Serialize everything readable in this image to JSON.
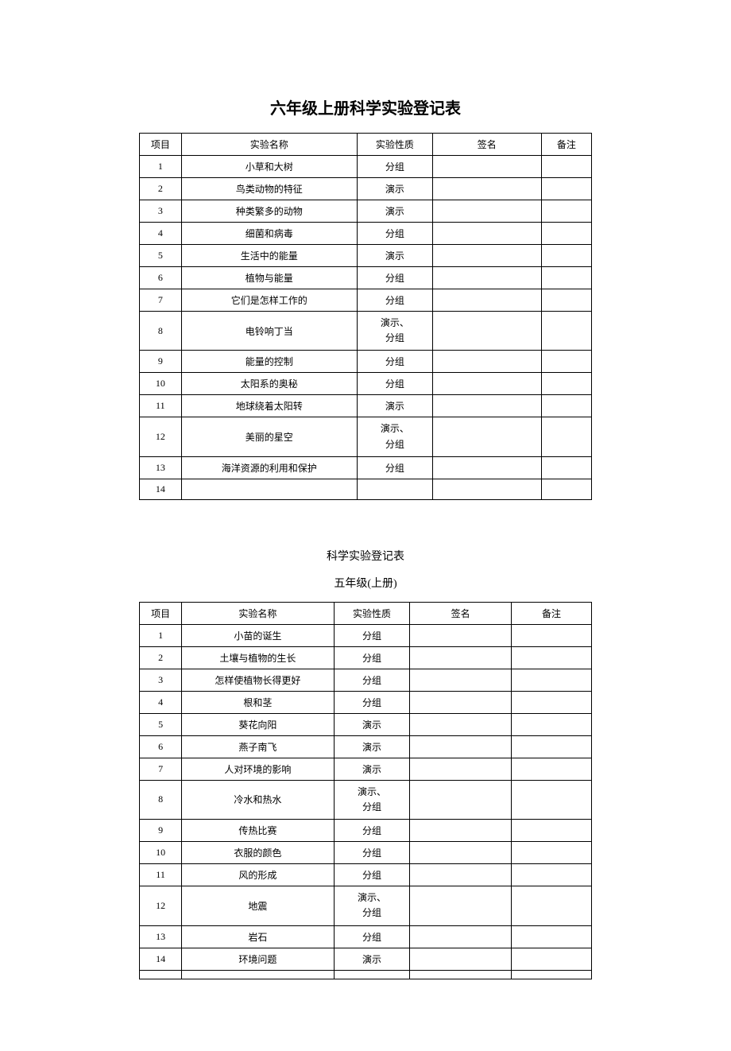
{
  "title1": "六年级上册科学实验登记表",
  "table1": {
    "headers": [
      "项目",
      "实验名称",
      "实验性质",
      "签名",
      "备注"
    ],
    "rows": [
      [
        "1",
        "小草和大树",
        "分组",
        "",
        ""
      ],
      [
        "2",
        "鸟类动物的特征",
        "演示",
        "",
        ""
      ],
      [
        "3",
        "种类繁多的动物",
        "演示",
        "",
        ""
      ],
      [
        "4",
        "细菌和病毒",
        "分组",
        "",
        ""
      ],
      [
        "5",
        "生活中的能量",
        "演示",
        "",
        ""
      ],
      [
        "6",
        "植物与能量",
        "分组",
        "",
        ""
      ],
      [
        "7",
        "它们是怎样工作的",
        "分组",
        "",
        ""
      ],
      [
        "8",
        "电铃响丁当",
        "演示、\n分组",
        "",
        ""
      ],
      [
        "9",
        "能量的控制",
        "分组",
        "",
        ""
      ],
      [
        "10",
        "太阳系的奥秘",
        "分组",
        "",
        ""
      ],
      [
        "11",
        "地球绕着太阳转",
        "演示",
        "",
        ""
      ],
      [
        "12",
        "美丽的星空",
        "演示、\n分组",
        "",
        ""
      ],
      [
        "13",
        "海洋资源的利用和保护",
        "分组",
        "",
        ""
      ],
      [
        "14",
        "",
        "",
        "",
        ""
      ]
    ]
  },
  "title2": "科学实验登记表",
  "subtitle2": "五年级(上册)",
  "table2": {
    "headers": [
      "项目",
      "实验名称",
      "实验性质",
      "签名",
      "备注"
    ],
    "rows": [
      [
        "1",
        "小苗的诞生",
        "分组",
        "",
        ""
      ],
      [
        "2",
        "土壤与植物的生长",
        "分组",
        "",
        ""
      ],
      [
        "3",
        "怎样使植物长得更好",
        "分组",
        "",
        ""
      ],
      [
        "4",
        "根和茎",
        "分组",
        "",
        ""
      ],
      [
        "5",
        "葵花向阳",
        "演示",
        "",
        ""
      ],
      [
        "6",
        "燕子南飞",
        "演示",
        "",
        ""
      ],
      [
        "7",
        "人对环境的影响",
        "演示",
        "",
        ""
      ],
      [
        "8",
        "冷水和热水",
        "演示、\n分组",
        "",
        ""
      ],
      [
        "9",
        "传热比赛",
        "分组",
        "",
        ""
      ],
      [
        "10",
        "衣服的颜色",
        "分组",
        "",
        ""
      ],
      [
        "11",
        "风的形成",
        "分组",
        "",
        ""
      ],
      [
        "12",
        "地震",
        "演示、\n分组",
        "",
        ""
      ],
      [
        "13",
        "岩石",
        "分组",
        "",
        ""
      ],
      [
        "14",
        "环境问题",
        "演示",
        "",
        ""
      ],
      [
        "",
        "",
        "",
        "",
        ""
      ]
    ]
  }
}
